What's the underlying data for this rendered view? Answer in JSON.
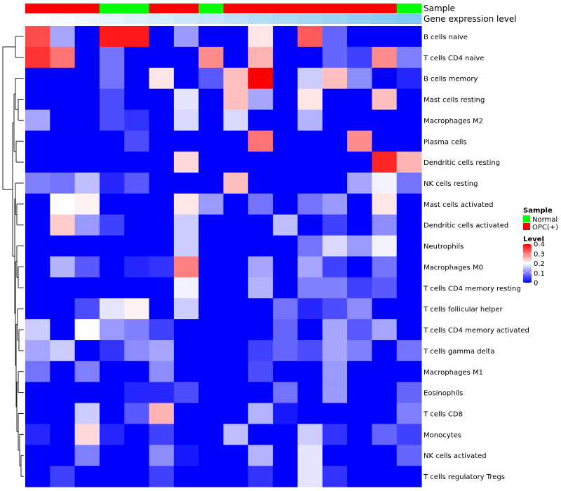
{
  "chart_data": {
    "type": "heatmap",
    "annotation_tracks": [
      {
        "name": "Sample",
        "values": [
          "OPC(+)",
          "OPC(+)",
          "OPC(+)",
          "Normal",
          "Normal",
          "OPC(+)",
          "OPC(+)",
          "Normal",
          "OPC(+)",
          "OPC(+)",
          "OPC(+)",
          "OPC(+)",
          "OPC(+)",
          "OPC(+)",
          "OPC(+)",
          "Normal"
        ]
      },
      {
        "name": "Gene expression level",
        "values": [
          0.0,
          0.02,
          0.04,
          0.06,
          0.08,
          0.1,
          0.12,
          0.14,
          0.16,
          0.18,
          0.2,
          0.22,
          0.24,
          0.26,
          0.28,
          0.3
        ]
      }
    ],
    "rows": [
      "B cells naive",
      "T cells CD4 naive",
      "B cells memory",
      "Mast cells resting",
      "Macrophages M2",
      "Plasma cells",
      "Dendritic cells resting",
      "NK cells resting",
      "Mast cells activated",
      "Dendritic cells activated",
      "Neutrophils",
      "Macrophages M0",
      "T cells CD4 memory resting",
      "T cells follicular helper",
      "T cells CD4 memory activated",
      "T cells gamma delta",
      "Macrophages M1",
      "Eosinophils",
      "T cells CD8",
      "Monocytes",
      "NK cells activated",
      "T cells regulatory  Tregs"
    ],
    "columns": 16,
    "values": [
      [
        0.34,
        0.13,
        0.0,
        0.38,
        0.38,
        0.0,
        0.12,
        0.0,
        0.0,
        0.22,
        0.0,
        0.33,
        0.08,
        0.0,
        0.0,
        0.0
      ],
      [
        0.36,
        0.31,
        0.0,
        0.09,
        0.0,
        0.0,
        0.0,
        0.29,
        0.0,
        0.26,
        0.0,
        0.0,
        0.08,
        0.05,
        0.29,
        0.1
      ],
      [
        0.0,
        0.0,
        0.0,
        0.09,
        0.0,
        0.22,
        0.0,
        0.07,
        0.25,
        0.4,
        0.0,
        0.16,
        0.25,
        0.11,
        0.0,
        0.03
      ],
      [
        0.0,
        0.0,
        0.0,
        0.06,
        0.0,
        0.0,
        0.18,
        0.0,
        0.25,
        0.13,
        0.0,
        0.22,
        0.0,
        0.0,
        0.25,
        0.0
      ],
      [
        0.13,
        0.0,
        0.0,
        0.06,
        0.04,
        0.0,
        0.17,
        0.0,
        0.17,
        0.0,
        0.0,
        0.14,
        0.0,
        0.0,
        0.0,
        0.0
      ],
      [
        0.0,
        0.0,
        0.0,
        0.0,
        0.06,
        0.0,
        0.0,
        0.0,
        0.0,
        0.31,
        0.0,
        0.0,
        0.0,
        0.29,
        0.0,
        0.0
      ],
      [
        0.0,
        0.0,
        0.0,
        0.0,
        0.0,
        0.0,
        0.23,
        0.0,
        0.0,
        0.0,
        0.0,
        0.0,
        0.0,
        0.0,
        0.37,
        0.26
      ],
      [
        0.1,
        0.09,
        0.15,
        0.03,
        0.07,
        0.0,
        0.0,
        0.0,
        0.25,
        0.0,
        0.0,
        0.0,
        0.0,
        0.13,
        0.19,
        0.09
      ],
      [
        0.0,
        0.2,
        0.21,
        0.0,
        0.0,
        0.0,
        0.22,
        0.12,
        0.0,
        0.09,
        0.0,
        0.09,
        0.12,
        0.0,
        0.22,
        0.0
      ],
      [
        0.0,
        0.24,
        0.12,
        0.05,
        0.0,
        0.0,
        0.16,
        0.0,
        0.0,
        0.0,
        0.15,
        0.0,
        0.05,
        0.0,
        0.11,
        0.0
      ],
      [
        0.0,
        0.0,
        0.0,
        0.0,
        0.0,
        0.0,
        0.16,
        0.0,
        0.0,
        0.0,
        0.0,
        0.09,
        0.17,
        0.12,
        0.19,
        0.0
      ],
      [
        0.0,
        0.14,
        0.07,
        0.0,
        0.03,
        0.04,
        0.3,
        0.0,
        0.0,
        0.13,
        0.0,
        0.13,
        0.05,
        0.0,
        0.09,
        0.0
      ],
      [
        0.0,
        0.0,
        0.0,
        0.0,
        0.0,
        0.0,
        0.19,
        0.0,
        0.0,
        0.14,
        0.0,
        0.1,
        0.1,
        0.05,
        0.07,
        0.0
      ],
      [
        0.0,
        0.0,
        0.06,
        0.18,
        0.21,
        0.0,
        0.16,
        0.0,
        0.0,
        0.0,
        0.09,
        0.03,
        0.06,
        0.11,
        0.0,
        0.0
      ],
      [
        0.16,
        0.0,
        0.2,
        0.12,
        0.1,
        0.05,
        0.0,
        0.0,
        0.0,
        0.0,
        0.08,
        0.0,
        0.13,
        0.07,
        0.13,
        0.0
      ],
      [
        0.13,
        0.16,
        0.0,
        0.04,
        0.11,
        0.13,
        0.0,
        0.0,
        0.0,
        0.05,
        0.08,
        0.06,
        0.13,
        0.1,
        0.0,
        0.09
      ],
      [
        0.09,
        0.0,
        0.1,
        0.0,
        0.0,
        0.11,
        0.0,
        0.0,
        0.0,
        0.06,
        0.0,
        0.0,
        0.12,
        0.0,
        0.0,
        0.0
      ],
      [
        0.0,
        0.0,
        0.0,
        0.0,
        0.03,
        0.03,
        0.06,
        0.0,
        0.0,
        0.0,
        0.09,
        0.0,
        0.12,
        0.0,
        0.0,
        0.08
      ],
      [
        0.0,
        0.0,
        0.16,
        0.0,
        0.07,
        0.26,
        0.0,
        0.0,
        0.0,
        0.14,
        0.02,
        0.0,
        0.0,
        0.0,
        0.0,
        0.1
      ],
      [
        0.03,
        0.0,
        0.23,
        0.03,
        0.0,
        0.05,
        0.0,
        0.0,
        0.15,
        0.0,
        0.0,
        0.16,
        0.04,
        0.0,
        0.08,
        0.05
      ],
      [
        0.0,
        0.0,
        0.1,
        0.0,
        0.0,
        0.11,
        0.02,
        0.0,
        0.0,
        0.14,
        0.0,
        0.18,
        0.0,
        0.0,
        0.0,
        0.08
      ],
      [
        0.0,
        0.05,
        0.0,
        0.0,
        0.0,
        0.05,
        0.0,
        0.0,
        0.0,
        0.04,
        0.0,
        0.18,
        0.04,
        0.0,
        0.0,
        0.0
      ]
    ],
    "color_scale": {
      "min": 0,
      "max": 0.4,
      "low": "#0000FF",
      "mid": "#FFFFFF",
      "mid_value": 0.2,
      "high": "#FF0000"
    },
    "legend": {
      "position": "right",
      "sample_title": "Sample",
      "sample_entries": [
        {
          "label": "Normal",
          "color": "#00FF00"
        },
        {
          "label": "OPC(+)",
          "color": "#FF0000"
        }
      ],
      "level_title": "Level",
      "level_ticks": [
        0.4,
        0.3,
        0.2,
        0.1,
        0
      ],
      "level_tick_labels": [
        "0.4",
        "0.3",
        "0.2",
        "0.1",
        "0"
      ]
    },
    "row_dendrogram": true
  }
}
